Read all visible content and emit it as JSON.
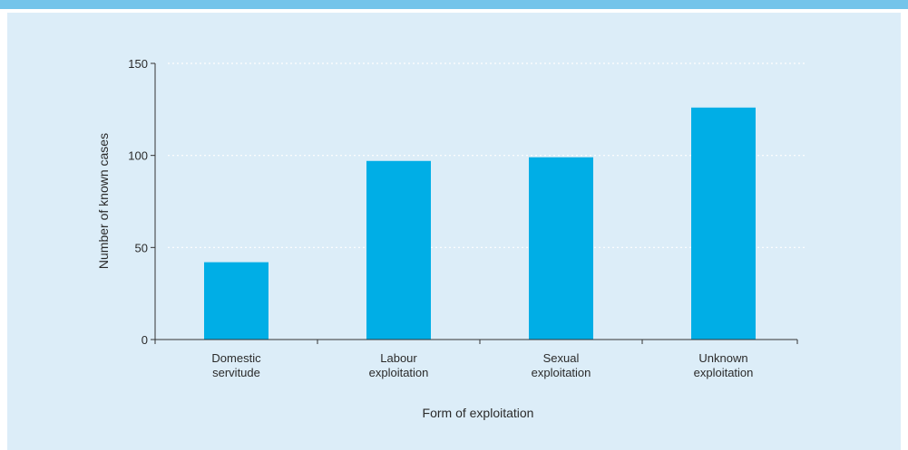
{
  "colors": {
    "top_band": "#74c4ea",
    "panel_background": "#dcedf8",
    "bar": "#00aee6",
    "axis": "#333333",
    "grid": "#ffffff"
  },
  "chart_data": {
    "type": "bar",
    "categories": [
      [
        "Domestic",
        "servitude"
      ],
      [
        "Labour",
        "exploitation"
      ],
      [
        "Sexual",
        "exploitation"
      ],
      [
        "Unknown",
        "exploitation"
      ]
    ],
    "values": [
      42,
      97,
      99,
      126
    ],
    "xlabel": "Form of exploitation",
    "ylabel": "Number of known cases",
    "ylim": [
      0,
      150
    ],
    "yticks": [
      0,
      50,
      100,
      150
    ],
    "grid": "horizontal dotted",
    "legend": "none"
  }
}
